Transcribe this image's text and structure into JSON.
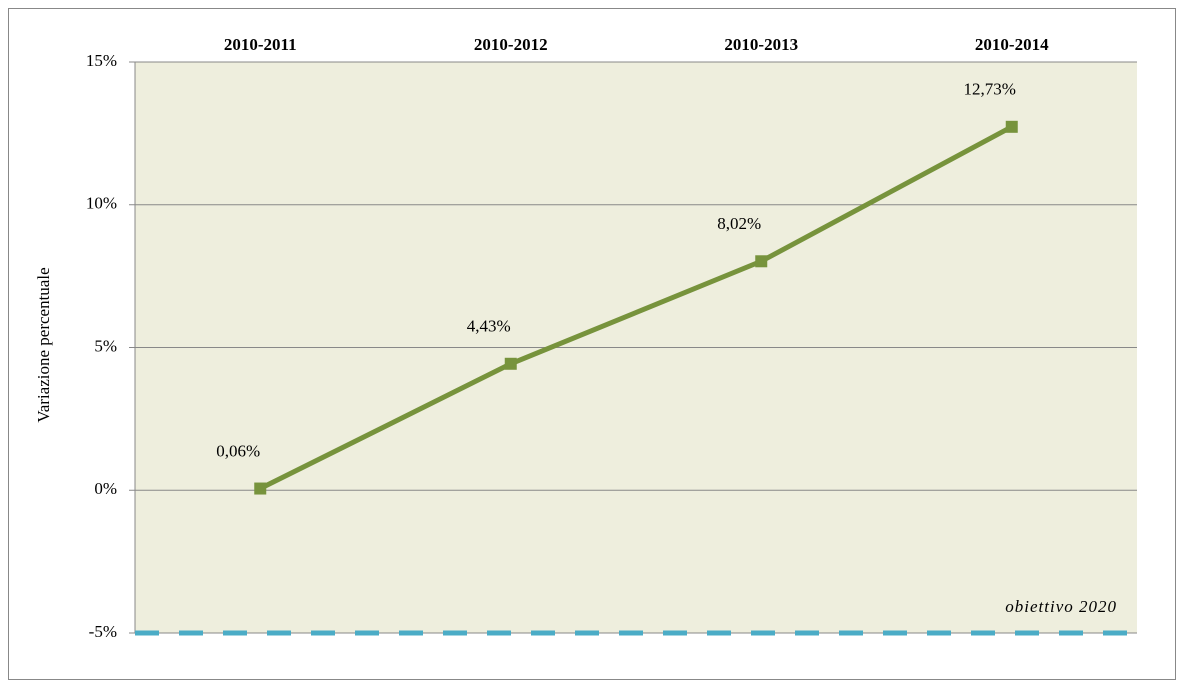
{
  "chart_data": {
    "type": "line",
    "categories": [
      "2010-2011",
      "2010-2012",
      "2010-2013",
      "2010-2014"
    ],
    "values": [
      0.06,
      4.43,
      8.02,
      12.73
    ],
    "value_labels": [
      "0,06%",
      "4,43%",
      "8,02%",
      "12,73%"
    ],
    "color": "#77933c",
    "ylabel": "Variazione percentuale",
    "ylim": [
      -5,
      15
    ],
    "yticks": [
      {
        "value": -5,
        "label": "-5%"
      },
      {
        "value": 0,
        "label": "0%"
      },
      {
        "value": 5,
        "label": "5%"
      },
      {
        "value": 10,
        "label": "10%"
      },
      {
        "value": 15,
        "label": "15%"
      }
    ],
    "grid": true,
    "reference_line": {
      "value": -5,
      "label": "obiettivo 2020",
      "color": "#4bacc6"
    }
  }
}
